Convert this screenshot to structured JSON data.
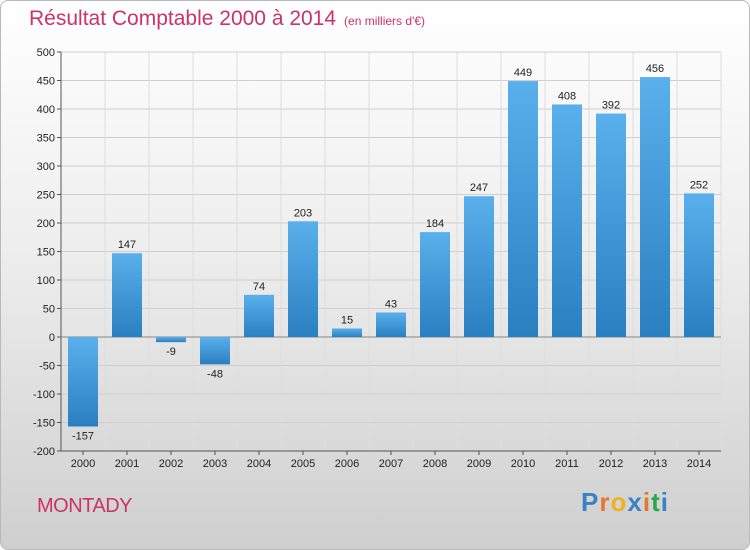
{
  "header": {
    "title": "Résultat Comptable 2000 à 2014",
    "subtitle": "(en milliers d'€)"
  },
  "footer": {
    "place_name": "MONTADY",
    "brand_logo": "Proxiti"
  },
  "colors": {
    "title": "#cc3366",
    "bar_light": "#5ab0ec",
    "bar_dark": "#2a7fc0"
  },
  "chart_data": {
    "type": "bar",
    "title": "Résultat Comptable 2000 à 2014",
    "subtitle": "(en milliers d'€)",
    "xlabel": "",
    "ylabel": "",
    "categories": [
      "2000",
      "2001",
      "2002",
      "2003",
      "2004",
      "2005",
      "2006",
      "2007",
      "2008",
      "2009",
      "2010",
      "2011",
      "2012",
      "2013",
      "2014"
    ],
    "values": [
      -157,
      147,
      -9,
      -48,
      74,
      203,
      15,
      43,
      184,
      247,
      449,
      408,
      392,
      456,
      252
    ],
    "ylim": [
      -200,
      500
    ],
    "yticks": [
      -200,
      -150,
      -100,
      -50,
      0,
      50,
      100,
      150,
      200,
      250,
      300,
      350,
      400,
      450,
      500
    ],
    "grid": true,
    "legend": "none"
  }
}
